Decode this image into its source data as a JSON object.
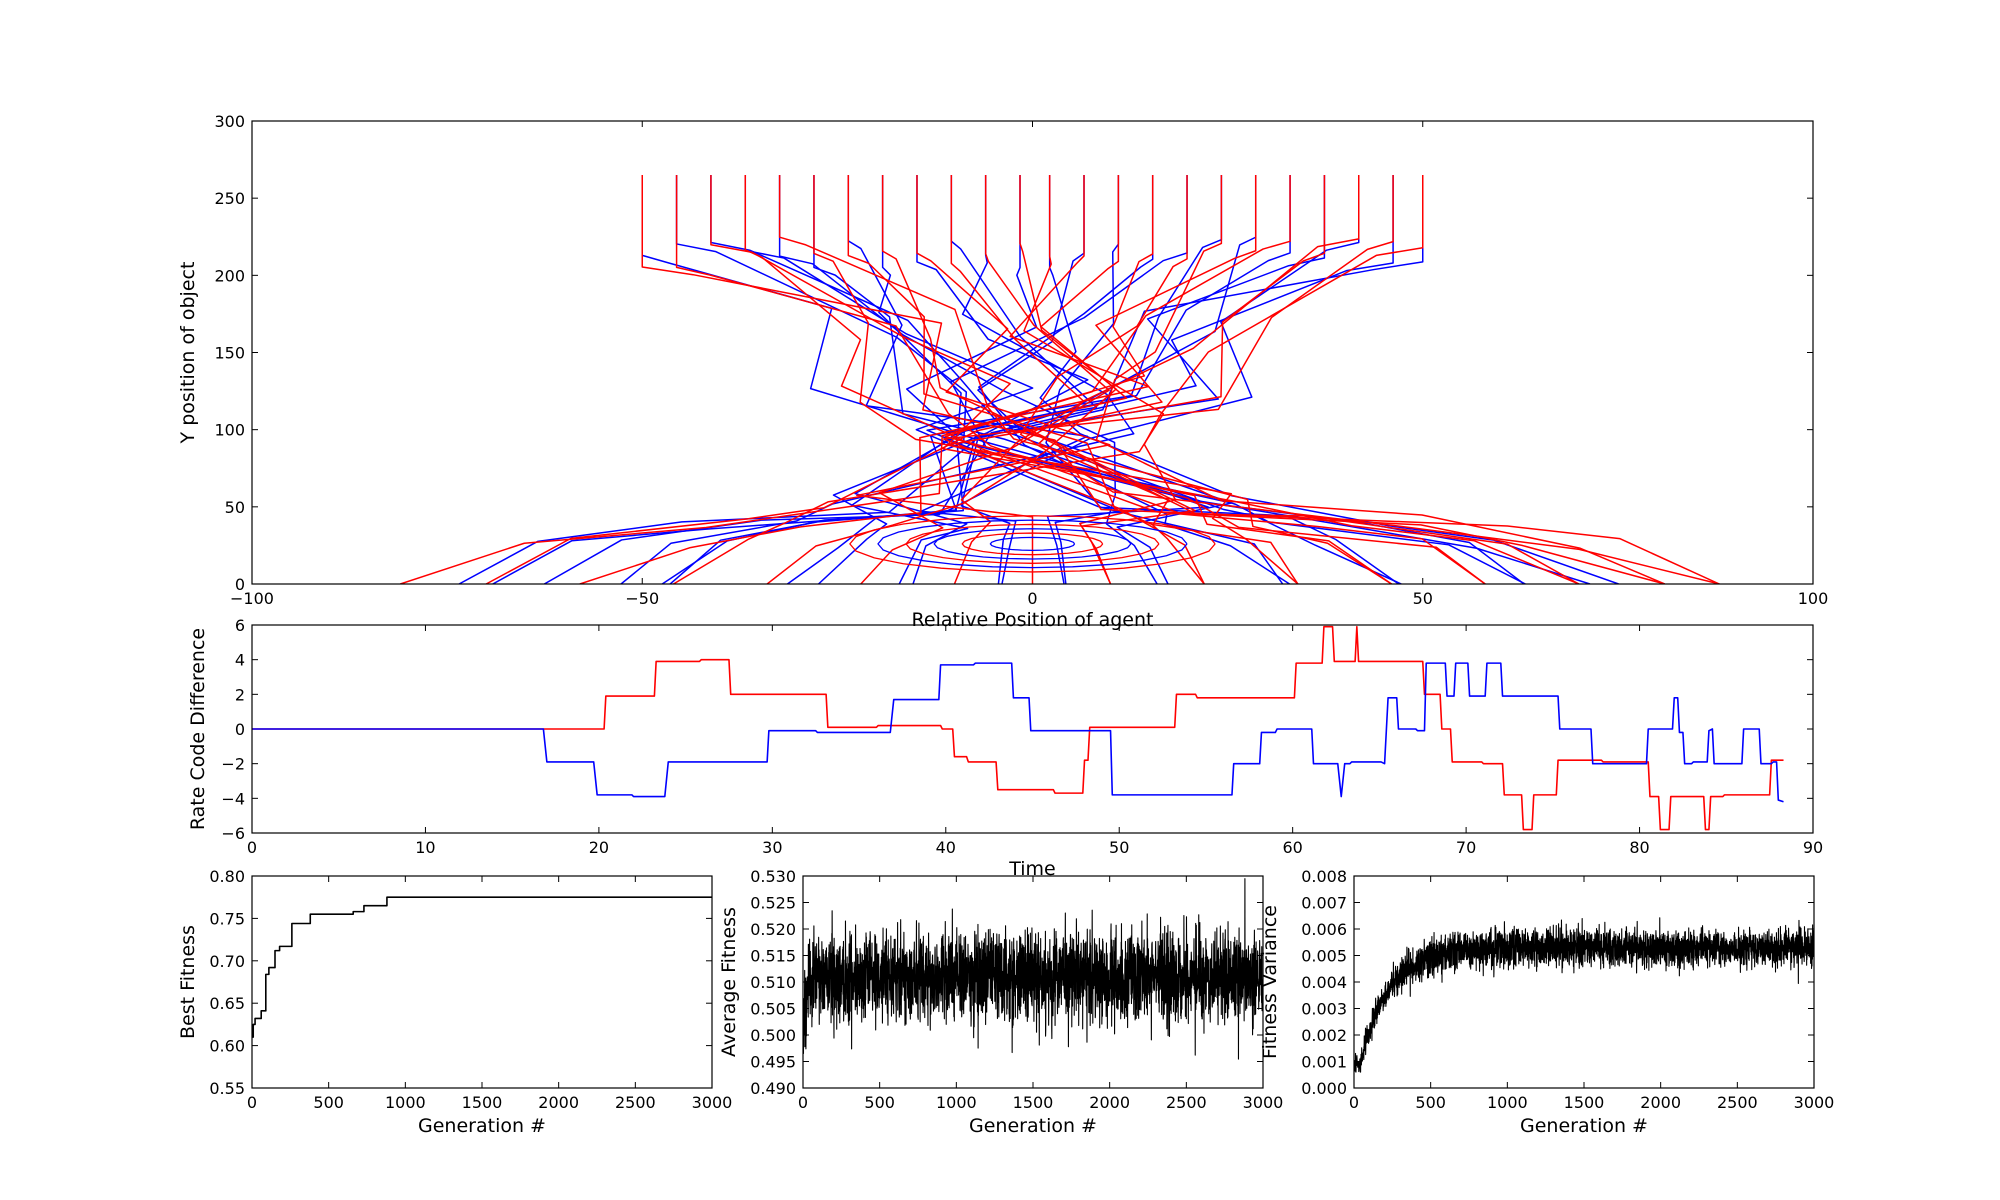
{
  "chart_data": [
    {
      "id": "trajectories",
      "type": "line",
      "xlabel": "Relative Position of agent",
      "ylabel": "Y position of object",
      "xlim": [
        -100,
        100
      ],
      "ylim": [
        0,
        300
      ],
      "xticks": [
        -100,
        -50,
        0,
        50,
        100
      ],
      "yticks": [
        0,
        50,
        100,
        150,
        200,
        250,
        300
      ],
      "xtick_labels": [
        "−100",
        "−50",
        "0",
        "50",
        "100"
      ],
      "ytick_labels": [
        "0",
        "50",
        "100",
        "150",
        "200",
        "250",
        "300"
      ],
      "start_x": [
        -50,
        -45.6,
        -41.2,
        -36.8,
        -32.4,
        -28,
        -23.6,
        -19.2,
        -14.8,
        -10.4,
        -6,
        -1.6,
        2.2,
        6.6,
        11,
        15.4,
        19.8,
        24.2,
        28.6,
        33,
        37.4,
        41.8,
        46.2,
        50
      ],
      "start_y": 265,
      "end_x_red": [
        -81,
        -70,
        -58,
        -46,
        -34,
        -22,
        -10,
        0,
        10,
        22,
        34,
        46,
        58,
        70,
        81,
        88
      ],
      "end_x_blue": [
        -71,
        -58,
        -44,
        -30,
        -16,
        -4,
        4,
        16,
        30,
        44,
        58,
        72
      ],
      "crossing_center": [
        0,
        75
      ],
      "grid": false,
      "series_colors": [
        "#ff0000",
        "#0000ff"
      ]
    },
    {
      "id": "rate-code",
      "type": "line",
      "xlabel": "Time",
      "ylabel": "Rate Code Difference",
      "xlim": [
        0,
        90
      ],
      "ylim": [
        -6,
        6
      ],
      "xticks": [
        0,
        10,
        20,
        30,
        40,
        50,
        60,
        70,
        80,
        90
      ],
      "yticks": [
        -6,
        -4,
        -2,
        0,
        2,
        4,
        6
      ],
      "xtick_labels": [
        "0",
        "10",
        "20",
        "30",
        "40",
        "50",
        "60",
        "70",
        "80",
        "90"
      ],
      "ytick_labels": [
        "−6",
        "−4",
        "−2",
        "0",
        "2",
        "4",
        "6"
      ],
      "grid": false,
      "series": [
        {
          "color": "#ff0000",
          "points": [
            [
              0,
              0
            ],
            [
              20.3,
              0
            ],
            [
              20.4,
              1.9
            ],
            [
              23.2,
              1.9
            ],
            [
              23.3,
              3.9
            ],
            [
              25.8,
              3.9
            ],
            [
              25.9,
              4
            ],
            [
              27.5,
              4
            ],
            [
              27.6,
              2
            ],
            [
              33.1,
              2
            ],
            [
              33.2,
              0.1
            ],
            [
              36,
              0.1
            ],
            [
              36.1,
              0.2
            ],
            [
              39.7,
              0.2
            ],
            [
              39.8,
              0
            ],
            [
              40.4,
              0
            ],
            [
              40.5,
              -1.6
            ],
            [
              41.2,
              -1.6
            ],
            [
              41.3,
              -1.9
            ],
            [
              42.9,
              -1.9
            ],
            [
              43,
              -3.5
            ],
            [
              46.2,
              -3.5
            ],
            [
              46.3,
              -3.7
            ],
            [
              47.9,
              -3.7
            ],
            [
              48,
              -1.8
            ],
            [
              48.2,
              -1.8
            ],
            [
              48.3,
              0.1
            ],
            [
              53.2,
              0.1
            ],
            [
              53.3,
              2
            ],
            [
              54.4,
              2
            ],
            [
              54.5,
              1.8
            ],
            [
              60.1,
              1.8
            ],
            [
              60.2,
              3.8
            ],
            [
              61.7,
              3.8
            ],
            [
              61.8,
              5.9
            ],
            [
              62.3,
              5.9
            ],
            [
              62.4,
              3.9
            ],
            [
              63.6,
              3.9
            ],
            [
              63.7,
              5.9
            ],
            [
              63.8,
              3.9
            ],
            [
              67.5,
              3.9
            ],
            [
              67.6,
              2
            ],
            [
              68.5,
              2
            ],
            [
              68.6,
              0
            ],
            [
              69.1,
              0
            ],
            [
              69.2,
              -1.9
            ],
            [
              70.9,
              -1.9
            ],
            [
              71,
              -2
            ],
            [
              72.1,
              -2
            ],
            [
              72.2,
              -3.8
            ],
            [
              73.2,
              -3.8
            ],
            [
              73.3,
              -5.8
            ],
            [
              73.8,
              -5.8
            ],
            [
              73.9,
              -3.8
            ],
            [
              75.2,
              -3.8
            ],
            [
              75.3,
              -1.8
            ],
            [
              77.8,
              -1.8
            ],
            [
              77.9,
              -1.9
            ],
            [
              80.5,
              -1.9
            ],
            [
              80.6,
              -3.9
            ],
            [
              81.1,
              -3.9
            ],
            [
              81.2,
              -5.8
            ],
            [
              81.7,
              -5.8
            ],
            [
              81.8,
              -3.9
            ],
            [
              83.7,
              -3.9
            ],
            [
              83.8,
              -5.8
            ],
            [
              84,
              -5.8
            ],
            [
              84.1,
              -3.9
            ],
            [
              84.8,
              -3.9
            ],
            [
              84.9,
              -3.8
            ],
            [
              87.5,
              -3.8
            ],
            [
              87.6,
              -1.8
            ],
            [
              88.3,
              -1.8
            ]
          ]
        },
        {
          "color": "#0000ff",
          "points": [
            [
              0,
              0
            ],
            [
              16.8,
              0
            ],
            [
              17,
              -1.9
            ],
            [
              19.7,
              -1.9
            ],
            [
              19.9,
              -3.8
            ],
            [
              21.9,
              -3.8
            ],
            [
              22,
              -3.9
            ],
            [
              23.8,
              -3.9
            ],
            [
              24,
              -1.9
            ],
            [
              29.7,
              -1.9
            ],
            [
              29.8,
              -0.1
            ],
            [
              32.5,
              -0.1
            ],
            [
              32.6,
              -0.2
            ],
            [
              36.8,
              -0.2
            ],
            [
              37,
              1.7
            ],
            [
              39.6,
              1.7
            ],
            [
              39.7,
              3.7
            ],
            [
              41.6,
              3.7
            ],
            [
              41.7,
              3.8
            ],
            [
              43.8,
              3.8
            ],
            [
              43.9,
              1.8
            ],
            [
              44.8,
              1.8
            ],
            [
              44.9,
              -0.1
            ],
            [
              49.5,
              -0.1
            ],
            [
              49.6,
              -3.8
            ],
            [
              56.5,
              -3.8
            ],
            [
              56.6,
              -2
            ],
            [
              58.1,
              -2
            ],
            [
              58.2,
              -0.2
            ],
            [
              59,
              -0.2
            ],
            [
              59.1,
              0
            ],
            [
              61.1,
              0
            ],
            [
              61.2,
              -2
            ],
            [
              62.6,
              -2
            ],
            [
              62.8,
              -3.9
            ],
            [
              63,
              -2
            ],
            [
              63.3,
              -2
            ],
            [
              63.4,
              -1.9
            ],
            [
              65.1,
              -1.9
            ],
            [
              65.3,
              -2
            ],
            [
              65.4,
              -0.1
            ],
            [
              65.5,
              1.8
            ],
            [
              66,
              1.8
            ],
            [
              66.1,
              0
            ],
            [
              67.1,
              0
            ],
            [
              67.2,
              -0.1
            ],
            [
              67.6,
              -0.1
            ],
            [
              67.7,
              3.8
            ],
            [
              68.8,
              3.8
            ],
            [
              68.9,
              1.9
            ],
            [
              69.3,
              1.9
            ],
            [
              69.4,
              3.8
            ],
            [
              70.1,
              3.8
            ],
            [
              70.2,
              1.9
            ],
            [
              71.1,
              1.9
            ],
            [
              71.2,
              3.8
            ],
            [
              72,
              3.8
            ],
            [
              72.1,
              1.9
            ],
            [
              75.3,
              1.9
            ],
            [
              75.4,
              0
            ],
            [
              77.2,
              0
            ],
            [
              77.3,
              -2
            ],
            [
              80.4,
              -2
            ],
            [
              80.5,
              0
            ],
            [
              81.9,
              0
            ],
            [
              82,
              1.8
            ],
            [
              82.2,
              1.8
            ],
            [
              82.3,
              -0.2
            ],
            [
              82.5,
              -0.2
            ],
            [
              82.6,
              -2
            ],
            [
              83,
              -2
            ],
            [
              83.1,
              -1.9
            ],
            [
              83.9,
              -1.9
            ],
            [
              84,
              -0.1
            ],
            [
              84.2,
              0
            ],
            [
              84.3,
              -2
            ],
            [
              85.9,
              -2
            ],
            [
              86,
              0
            ],
            [
              86.9,
              0
            ],
            [
              87,
              -2
            ],
            [
              87.6,
              -2
            ],
            [
              87.7,
              -1.9
            ],
            [
              87.9,
              -1.9
            ],
            [
              88,
              -4.1
            ],
            [
              88.3,
              -4.2
            ]
          ]
        }
      ]
    },
    {
      "id": "best-fitness",
      "type": "line",
      "xlabel": "Generation #",
      "ylabel": "Best Fitness",
      "xlim": [
        0,
        3000
      ],
      "ylim": [
        0.55,
        0.8
      ],
      "xticks": [
        0,
        500,
        1000,
        1500,
        2000,
        2500,
        3000
      ],
      "yticks": [
        0.55,
        0.6,
        0.65,
        0.7,
        0.75,
        0.8
      ],
      "xtick_labels": [
        "0",
        "500",
        "1000",
        "1500",
        "2000",
        "2500",
        "3000"
      ],
      "ytick_labels": [
        "0.55",
        "0.60",
        "0.65",
        "0.70",
        "0.75",
        "0.80"
      ],
      "grid": false,
      "series": [
        {
          "color": "#000000",
          "points": [
            [
              0,
              0.61
            ],
            [
              8,
              0.61
            ],
            [
              8,
              0.625
            ],
            [
              20,
              0.625
            ],
            [
              20,
              0.632
            ],
            [
              60,
              0.632
            ],
            [
              60,
              0.641
            ],
            [
              90,
              0.641
            ],
            [
              90,
              0.684
            ],
            [
              110,
              0.684
            ],
            [
              110,
              0.692
            ],
            [
              150,
              0.692
            ],
            [
              150,
              0.712
            ],
            [
              180,
              0.712
            ],
            [
              180,
              0.717
            ],
            [
              260,
              0.717
            ],
            [
              260,
              0.744
            ],
            [
              380,
              0.744
            ],
            [
              380,
              0.755
            ],
            [
              660,
              0.755
            ],
            [
              660,
              0.758
            ],
            [
              730,
              0.758
            ],
            [
              730,
              0.765
            ],
            [
              880,
              0.765
            ],
            [
              880,
              0.775
            ],
            [
              3000,
              0.775
            ]
          ]
        }
      ]
    },
    {
      "id": "average-fitness",
      "type": "line",
      "xlabel": "Generation #",
      "ylabel": "Average Fitness",
      "xlim": [
        0,
        3000
      ],
      "ylim": [
        0.49,
        0.53
      ],
      "xticks": [
        0,
        500,
        1000,
        1500,
        2000,
        2500,
        3000
      ],
      "yticks": [
        0.49,
        0.495,
        0.5,
        0.505,
        0.51,
        0.515,
        0.52,
        0.525,
        0.53
      ],
      "xtick_labels": [
        "0",
        "500",
        "1000",
        "1500",
        "2000",
        "2500",
        "3000"
      ],
      "ytick_labels": [
        "0.490",
        "0.495",
        "0.500",
        "0.505",
        "0.510",
        "0.515",
        "0.520",
        "0.525",
        "0.530"
      ],
      "grid": false,
      "noise": {
        "n": 3000,
        "mean": 0.511,
        "sd": 0.0042,
        "start": 0.503,
        "rise_generations": 60,
        "max": 0.5295,
        "min": 0.4912
      },
      "series": [
        {
          "color": "#000000"
        }
      ]
    },
    {
      "id": "fitness-variance",
      "type": "line",
      "xlabel": "Generation #",
      "ylabel": "Fitness Variance",
      "xlim": [
        0,
        3000
      ],
      "ylim": [
        0.0,
        0.008
      ],
      "xticks": [
        0,
        500,
        1000,
        1500,
        2000,
        2500,
        3000
      ],
      "yticks": [
        0.0,
        0.001,
        0.002,
        0.003,
        0.004,
        0.005,
        0.006,
        0.007,
        0.008
      ],
      "xtick_labels": [
        "0",
        "500",
        "1000",
        "1500",
        "2000",
        "2500",
        "3000"
      ],
      "ytick_labels": [
        "0.000",
        "0.001",
        "0.002",
        "0.003",
        "0.004",
        "0.005",
        "0.006",
        "0.007",
        "0.008"
      ],
      "grid": false,
      "noise": {
        "n": 3000,
        "start": 0.0009,
        "plateau": 0.0053,
        "sd": 0.00035,
        "max": 0.0073
      },
      "series": [
        {
          "color": "#000000"
        }
      ]
    }
  ]
}
